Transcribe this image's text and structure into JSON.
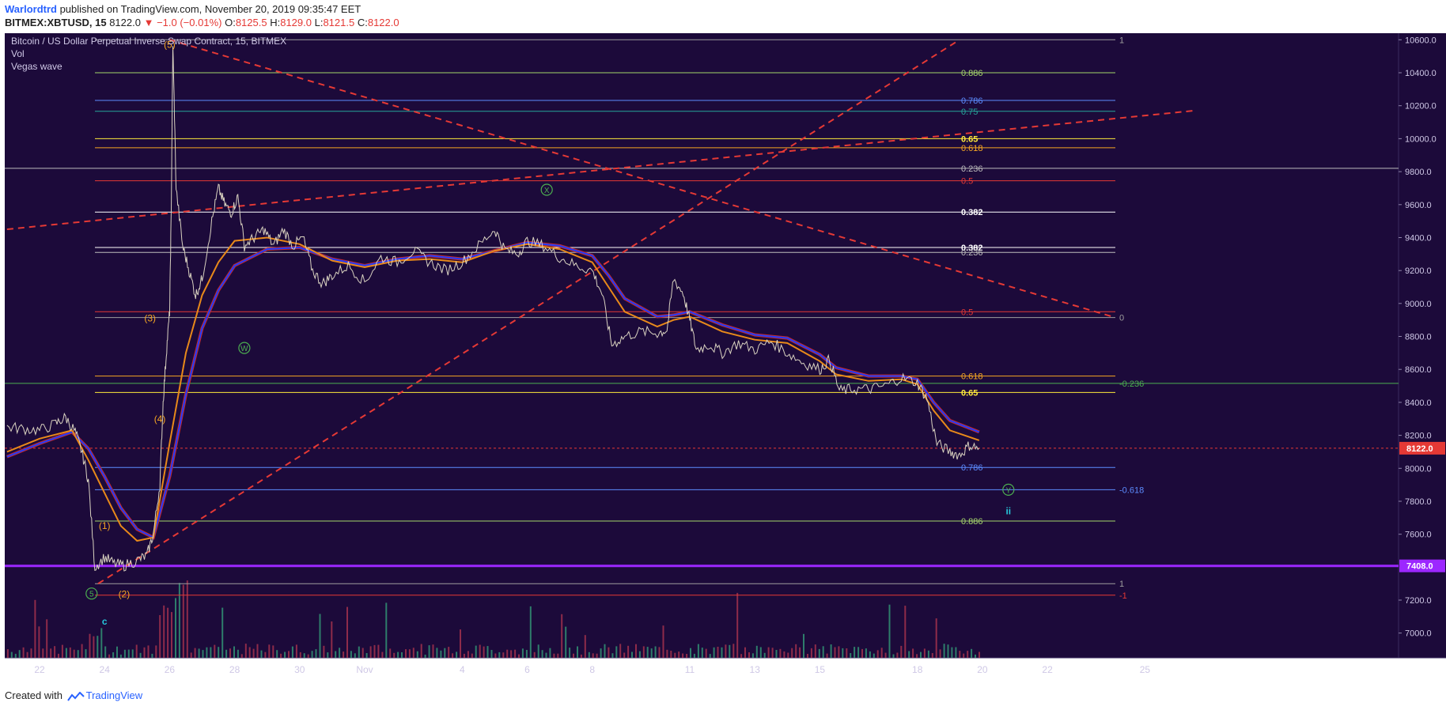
{
  "header": {
    "author": "Warlordtrd",
    "published": " published on TradingView.com, November 20, 2019 09:35:47 EET",
    "symbol": "BITMEX:XBTUSD, 15",
    "last": "8122.0",
    "change": "▼ −1.0 (−0.01%)",
    "o_label": "O:",
    "o": "8125.5",
    "h_label": "H:",
    "h": "8129.0",
    "l_label": "L:",
    "l": "8121.5",
    "c_label": "C:",
    "c": "8122.0"
  },
  "legend": {
    "title": "Bitcoin / US Dollar Perpetual Inverse Swap Contract, 15, BITMEX",
    "vol": "Vol",
    "vegas": "Vegas wave"
  },
  "footer": {
    "created": "Created with",
    "brand": "TradingView"
  },
  "colors": {
    "bg": "#1c0a3a",
    "axis_bg": "#1c0a3a",
    "text": "#cfc8e6",
    "red": "#e53935",
    "orange": "#f5a623",
    "yellow": "#ffeb3b",
    "green": "#4caf50",
    "blue": "#2962ff",
    "purple": "#9c27ff",
    "cyan": "#26c6da",
    "white": "#ffffff"
  },
  "chart_data": {
    "type": "line",
    "title": "Bitcoin / US Dollar Perpetual Inverse Swap Contract, 15, BITMEX",
    "y_ticks": [
      "10600.0",
      "10400.0",
      "10200.0",
      "10000.0",
      "9800.0",
      "9600.0",
      "9400.0",
      "9200.0",
      "9000.0",
      "8800.0",
      "8600.0",
      "8400.0",
      "8200.0",
      "8000.0",
      "7800.0",
      "7600.0",
      "7200.0",
      "7000.0"
    ],
    "y_tick_values": [
      10600,
      10400,
      10200,
      10000,
      9800,
      9600,
      9400,
      9200,
      9000,
      8800,
      8600,
      8400,
      8200,
      8000,
      7800,
      7600,
      7200,
      7000
    ],
    "ylim": [
      6850,
      10640
    ],
    "x_ticks": [
      {
        "label": "22",
        "day": 22
      },
      {
        "label": "24",
        "day": 24
      },
      {
        "label": "26",
        "day": 26
      },
      {
        "label": "28",
        "day": 28
      },
      {
        "label": "30",
        "day": 30
      },
      {
        "label": "Nov",
        "day": 32
      },
      {
        "label": "4",
        "day": 35
      },
      {
        "label": "6",
        "day": 37
      },
      {
        "label": "8",
        "day": 39
      },
      {
        "label": "11",
        "day": 42
      },
      {
        "label": "13",
        "day": 44
      },
      {
        "label": "15",
        "day": 46
      },
      {
        "label": "18",
        "day": 49
      },
      {
        "label": "20",
        "day": 51
      },
      {
        "label": "22",
        "day": 53
      },
      {
        "label": "25",
        "day": 56
      }
    ],
    "x_note": "day = days counted from Oct 1, 2019",
    "price_markers": [
      {
        "label": "8122.0",
        "value": 8122,
        "color": "#e53935"
      },
      {
        "label": "7408.0",
        "value": 7408,
        "color": "#9c27ff"
      }
    ],
    "fib_levels": [
      {
        "label": "1",
        "value": 10600,
        "color": "#9e9e9e"
      },
      {
        "label": "0.886",
        "value": 10400,
        "color": "#a5d66b"
      },
      {
        "label": "0.786",
        "value": 10232,
        "color": "#5c8cff"
      },
      {
        "label": "0.75",
        "value": 10166,
        "color": "#26a69a"
      },
      {
        "label": "0.65",
        "value": 10000,
        "color": "#ffeb3b"
      },
      {
        "label": "0.618",
        "value": 9945,
        "color": "#f5a623"
      },
      {
        "label": "0.236",
        "value": 9820,
        "color": "#bdbdbd"
      },
      {
        "label": "0.5",
        "value": 9745,
        "color": "#e53935"
      },
      {
        "label": "0.382",
        "value": 9555,
        "color": "#ffffff"
      },
      {
        "label": "0.382",
        "value": 9340,
        "color": "#ffffff"
      },
      {
        "label": "0.236",
        "value": 9310,
        "color": "#bdbdbd"
      },
      {
        "label": "0.5",
        "value": 8950,
        "color": "#e53935"
      },
      {
        "label": "0",
        "value": 8915,
        "color": "#9e9e9e"
      },
      {
        "label": "0.618",
        "value": 8560,
        "color": "#f5a623"
      },
      {
        "label": "-0.236",
        "value": 8515,
        "color": "#4caf50"
      },
      {
        "label": "0.65",
        "value": 8460,
        "color": "#ffeb3b"
      },
      {
        "label": "0.786",
        "value": 8005,
        "color": "#5c8cff"
      },
      {
        "label": "-0.618",
        "value": 7870,
        "color": "#5c8cff"
      },
      {
        "label": "0.886",
        "value": 7680,
        "color": "#a5d66b"
      },
      {
        "label": "1",
        "value": 7300,
        "color": "#9e9e9e"
      },
      {
        "label": "-1",
        "value": 7230,
        "color": "#e53935"
      }
    ],
    "wave_labels": [
      {
        "label": "(5)",
        "day": 26,
        "value": 10570,
        "color": "#f5a623",
        "circle": false
      },
      {
        "label": "(3)",
        "day": 25.4,
        "value": 8910,
        "color": "#f5a623",
        "circle": false
      },
      {
        "label": "(4)",
        "day": 25.7,
        "value": 8300,
        "color": "#f5a623",
        "circle": false
      },
      {
        "label": "(1)",
        "day": 24,
        "value": 7650,
        "color": "#f5a623",
        "circle": false
      },
      {
        "label": "(2)",
        "day": 24.6,
        "value": 7235,
        "color": "#f5a623",
        "circle": false
      },
      {
        "label": "5",
        "day": 23.6,
        "value": 7240,
        "color": "#4caf50",
        "circle": true
      },
      {
        "label": "c",
        "day": 24,
        "value": 7070,
        "color": "#26c6da",
        "circle": false
      },
      {
        "label": "W",
        "day": 28.3,
        "value": 8730,
        "color": "#4caf50",
        "circle": true
      },
      {
        "label": "X",
        "day": 37.6,
        "value": 9690,
        "color": "#4caf50",
        "circle": true
      },
      {
        "label": "Y",
        "day": 51.8,
        "value": 7870,
        "color": "#4caf50",
        "circle": true
      },
      {
        "label": "ii",
        "day": 51.8,
        "value": 7740,
        "color": "#26c6da",
        "circle": false
      }
    ],
    "trendlines": [
      {
        "from": [
          21,
          9450
        ],
        "to": [
          57.5,
          10170
        ]
      },
      {
        "from": [
          26,
          10600
        ],
        "to": [
          55,
          8920
        ]
      },
      {
        "from": [
          23.8,
          7300
        ],
        "to": [
          50.3,
          10600
        ]
      }
    ],
    "price": [
      [
        21.0,
        8250
      ],
      [
        21.5,
        8240
      ],
      [
        22.0,
        8230
      ],
      [
        22.5,
        8270
      ],
      [
        22.8,
        8310
      ],
      [
        23.1,
        8220
      ],
      [
        23.3,
        8100
      ],
      [
        23.5,
        7930
      ],
      [
        23.7,
        7400
      ],
      [
        24.0,
        7460
      ],
      [
        24.3,
        7420
      ],
      [
        24.6,
        7410
      ],
      [
        25.0,
        7440
      ],
      [
        25.3,
        7470
      ],
      [
        25.5,
        7600
      ],
      [
        25.7,
        7900
      ],
      [
        25.8,
        8400
      ],
      [
        25.9,
        8700
      ],
      [
        26.0,
        8950
      ],
      [
        26.05,
        9550
      ],
      [
        26.1,
        10580
      ],
      [
        26.2,
        9700
      ],
      [
        26.4,
        9350
      ],
      [
        26.6,
        9200
      ],
      [
        26.8,
        9050
      ],
      [
        27.0,
        9150
      ],
      [
        27.3,
        9500
      ],
      [
        27.5,
        9700
      ],
      [
        27.7,
        9600
      ],
      [
        27.9,
        9550
      ],
      [
        28.1,
        9650
      ],
      [
        28.3,
        9350
      ],
      [
        28.6,
        9400
      ],
      [
        28.9,
        9450
      ],
      [
        29.2,
        9350
      ],
      [
        29.5,
        9450
      ],
      [
        29.8,
        9350
      ],
      [
        30.1,
        9400
      ],
      [
        30.4,
        9200
      ],
      [
        30.7,
        9120
      ],
      [
        31.0,
        9170
      ],
      [
        31.5,
        9230
      ],
      [
        32.0,
        9130
      ],
      [
        32.5,
        9280
      ],
      [
        33.0,
        9250
      ],
      [
        33.5,
        9320
      ],
      [
        34.0,
        9250
      ],
      [
        34.5,
        9200
      ],
      [
        35.0,
        9250
      ],
      [
        35.5,
        9350
      ],
      [
        36.0,
        9450
      ],
      [
        36.3,
        9330
      ],
      [
        36.7,
        9300
      ],
      [
        37.0,
        9380
      ],
      [
        37.5,
        9350
      ],
      [
        38.0,
        9280
      ],
      [
        38.5,
        9230
      ],
      [
        39.0,
        9200
      ],
      [
        39.3,
        9060
      ],
      [
        39.6,
        8750
      ],
      [
        40.0,
        8800
      ],
      [
        40.5,
        8830
      ],
      [
        41.0,
        8820
      ],
      [
        41.3,
        8840
      ],
      [
        41.5,
        9150
      ],
      [
        41.8,
        9060
      ],
      [
        42.0,
        8900
      ],
      [
        42.2,
        8720
      ],
      [
        42.6,
        8750
      ],
      [
        43.0,
        8700
      ],
      [
        43.5,
        8760
      ],
      [
        44.0,
        8720
      ],
      [
        44.5,
        8770
      ],
      [
        45.0,
        8700
      ],
      [
        45.5,
        8640
      ],
      [
        46.0,
        8600
      ],
      [
        46.3,
        8660
      ],
      [
        46.6,
        8470
      ],
      [
        47.0,
        8480
      ],
      [
        47.5,
        8480
      ],
      [
        48.0,
        8500
      ],
      [
        48.5,
        8550
      ],
      [
        49.0,
        8520
      ],
      [
        49.3,
        8420
      ],
      [
        49.6,
        8150
      ],
      [
        50.0,
        8100
      ],
      [
        50.3,
        8080
      ],
      [
        50.6,
        8140
      ],
      [
        50.9,
        8122
      ]
    ],
    "ema_fast": [
      [
        21.0,
        8100
      ],
      [
        22.0,
        8180
      ],
      [
        23.0,
        8230
      ],
      [
        23.5,
        8050
      ],
      [
        24.0,
        7850
      ],
      [
        24.5,
        7650
      ],
      [
        25.0,
        7560
      ],
      [
        25.5,
        7580
      ],
      [
        26.0,
        8150
      ],
      [
        26.5,
        8700
      ],
      [
        27.0,
        9050
      ],
      [
        27.5,
        9250
      ],
      [
        28.0,
        9380
      ],
      [
        29.0,
        9400
      ],
      [
        30.0,
        9360
      ],
      [
        31.0,
        9260
      ],
      [
        32.0,
        9220
      ],
      [
        33.0,
        9260
      ],
      [
        34.0,
        9270
      ],
      [
        35.0,
        9250
      ],
      [
        36.0,
        9320
      ],
      [
        37.0,
        9360
      ],
      [
        38.0,
        9330
      ],
      [
        39.0,
        9250
      ],
      [
        39.5,
        9100
      ],
      [
        40.0,
        8950
      ],
      [
        41.0,
        8860
      ],
      [
        41.5,
        8900
      ],
      [
        42.0,
        8920
      ],
      [
        43.0,
        8830
      ],
      [
        44.0,
        8780
      ],
      [
        45.0,
        8760
      ],
      [
        46.0,
        8650
      ],
      [
        46.5,
        8570
      ],
      [
        47.5,
        8530
      ],
      [
        48.5,
        8540
      ],
      [
        49.0,
        8510
      ],
      [
        49.5,
        8350
      ],
      [
        50.0,
        8230
      ],
      [
        50.9,
        8170
      ]
    ],
    "ema_slow": [
      [
        21.0,
        8070
      ],
      [
        22.0,
        8150
      ],
      [
        23.0,
        8220
      ],
      [
        23.5,
        8120
      ],
      [
        24.0,
        7950
      ],
      [
        24.5,
        7760
      ],
      [
        25.0,
        7630
      ],
      [
        25.5,
        7580
      ],
      [
        26.0,
        7950
      ],
      [
        26.5,
        8450
      ],
      [
        27.0,
        8850
      ],
      [
        27.5,
        9080
      ],
      [
        28.0,
        9230
      ],
      [
        29.0,
        9330
      ],
      [
        30.0,
        9340
      ],
      [
        31.0,
        9270
      ],
      [
        32.0,
        9230
      ],
      [
        33.0,
        9270
      ],
      [
        34.0,
        9290
      ],
      [
        35.0,
        9270
      ],
      [
        36.0,
        9320
      ],
      [
        37.0,
        9370
      ],
      [
        38.0,
        9350
      ],
      [
        39.0,
        9290
      ],
      [
        39.5,
        9170
      ],
      [
        40.0,
        9030
      ],
      [
        41.0,
        8920
      ],
      [
        41.5,
        8930
      ],
      [
        42.0,
        8950
      ],
      [
        43.0,
        8870
      ],
      [
        44.0,
        8810
      ],
      [
        45.0,
        8790
      ],
      [
        46.0,
        8690
      ],
      [
        46.5,
        8610
      ],
      [
        47.5,
        8560
      ],
      [
        48.5,
        8560
      ],
      [
        49.0,
        8540
      ],
      [
        49.5,
        8400
      ],
      [
        50.0,
        8290
      ],
      [
        50.9,
        8220
      ]
    ]
  }
}
